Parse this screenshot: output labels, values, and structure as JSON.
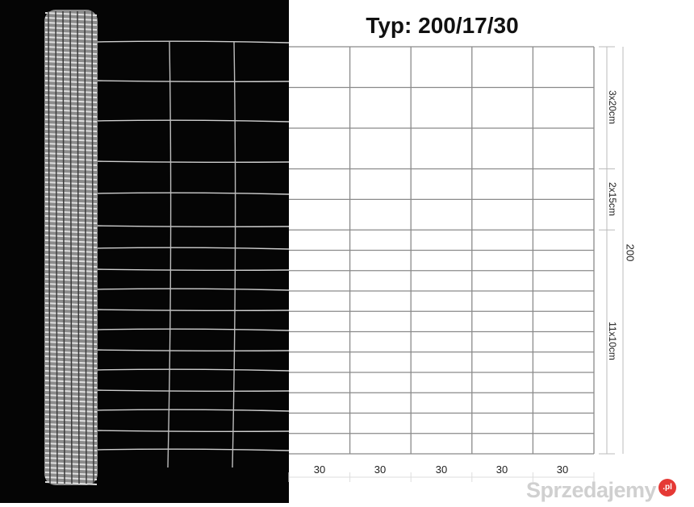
{
  "title": "Typ: 200/17/30",
  "dimensions": {
    "top_section": "3x20cm",
    "middle_section": "2x15cm",
    "bottom_section": "11x10cm",
    "total_height": "200",
    "column_widths": [
      "30",
      "30",
      "30",
      "30",
      "30"
    ]
  },
  "grid": {
    "row_spacings_cm": [
      20,
      20,
      20,
      15,
      15,
      10,
      10,
      10,
      10,
      10,
      10,
      10,
      10,
      10,
      10,
      10
    ],
    "column_count": 5
  },
  "watermark": {
    "text": "Sprzedajemy",
    "badge": ".pl",
    "badge_color": "#e53935"
  },
  "colors": {
    "photo_background": "#050505",
    "grid_line": "#8a8a8a"
  }
}
